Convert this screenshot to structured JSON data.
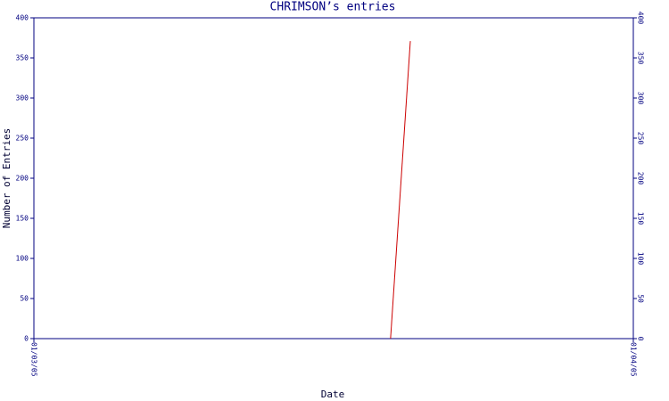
{
  "chart_data": {
    "type": "line",
    "title": "CHRIMSON’s entries",
    "x_label": "Date",
    "y_label": "Number of Entries",
    "x": [
      0.595,
      0.628
    ],
    "series": [
      {
        "name": "entries",
        "color": "#cc0000",
        "values": [
          0,
          371
        ]
      }
    ],
    "xlim": [
      0,
      1
    ],
    "xticks": [
      {
        "value": 0,
        "label": "01/03/05"
      },
      {
        "value": 1,
        "label": "01/04/05"
      }
    ],
    "ylim": [
      0,
      400
    ],
    "yticks": [
      0,
      50,
      100,
      150,
      200,
      250,
      300,
      350,
      400
    ],
    "axis_color": "#000080",
    "grid": false
  }
}
